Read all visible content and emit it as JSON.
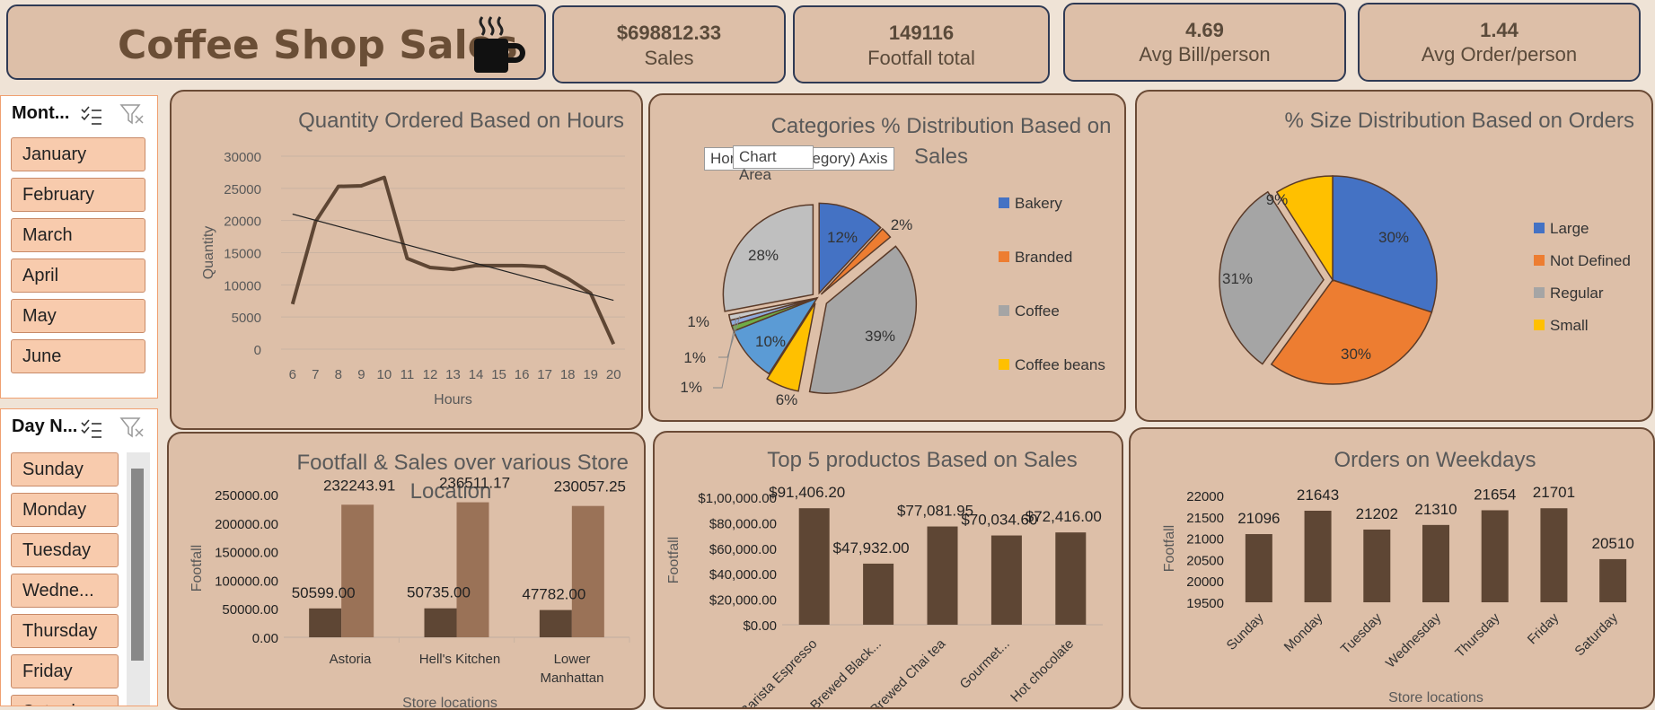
{
  "header": {
    "title": "Coffee Shop Sales"
  },
  "kpis": [
    {
      "value": "$698812.33",
      "label": "Sales"
    },
    {
      "value": "149116",
      "label": "Footfall total"
    },
    {
      "value": "4.69",
      "label": "Avg Bill/person"
    },
    {
      "value": "1.44",
      "label": "Avg Order/person"
    }
  ],
  "slicers": {
    "month": {
      "header": "Mont...",
      "items": [
        "January",
        "February",
        "March",
        "April",
        "May",
        "June"
      ]
    },
    "day": {
      "header": "Day N...",
      "items": [
        "Sunday",
        "Monday",
        "Tuesday",
        "Wedne...",
        "Thursday",
        "Friday",
        "Saturday"
      ]
    }
  },
  "tooltip": {
    "behind": "Horizontal (Category) Axis",
    "front": "Chart Area"
  },
  "colors": {
    "brown_dark": "#5e4634",
    "brown_light": "#9a7257",
    "blue": "#4472c4",
    "orange": "#ed7d31",
    "gray": "#a5a5a5",
    "gold": "#ffc000",
    "green": "#70ad47",
    "lightblue": "#5b9bd5"
  },
  "chart_data": [
    {
      "type": "line",
      "title": "Quantity Ordered Based on Hours",
      "xlabel": "Hours",
      "ylabel": "Quantity",
      "x": [
        6,
        7,
        8,
        9,
        10,
        11,
        12,
        13,
        14,
        15,
        16,
        17,
        18,
        19,
        20
      ],
      "series": [
        {
          "values": [
            7000,
            19800,
            25300,
            25400,
            26700,
            14100,
            12700,
            12400,
            13000,
            13000,
            13000,
            12800,
            11000,
            8700,
            800
          ]
        }
      ],
      "trendline": {
        "type": "linear",
        "from": [
          6,
          21000
        ],
        "to": [
          20,
          7600
        ]
      },
      "yticks": [
        "0",
        "5000",
        "10000",
        "15000",
        "20000",
        "25000",
        "30000"
      ],
      "ylim": [
        0,
        30000
      ],
      "grid": true
    },
    {
      "type": "pie",
      "title": "Categories % Distribution Based on Sales",
      "slices": [
        {
          "name": "Bakery",
          "value": 12,
          "label": "12%"
        },
        {
          "name": "Branded",
          "value": 2,
          "label": "2%"
        },
        {
          "name": "Coffee",
          "value": 39,
          "label": "39%"
        },
        {
          "name": "Coffee beans",
          "value": 6,
          "label": "6%"
        },
        {
          "value": 10,
          "label": "10%"
        },
        {
          "value": 1,
          "label": "1%"
        },
        {
          "value": 1,
          "label": "1%"
        },
        {
          "value": 1,
          "label": "1%"
        },
        {
          "value": 28,
          "label": "28%"
        }
      ],
      "legend": [
        "Bakery",
        "Branded",
        "Coffee",
        "Coffee beans"
      ],
      "legend_position": "right"
    },
    {
      "type": "pie",
      "title": "% Size Distribution Based on Orders",
      "slices": [
        {
          "name": "Large",
          "value": 30,
          "label": "30%"
        },
        {
          "name": "Not Defined",
          "value": 30,
          "label": "30%"
        },
        {
          "name": "Regular",
          "value": 31,
          "label": "31%"
        },
        {
          "name": "Small",
          "value": 9,
          "label": "9%"
        }
      ],
      "legend": [
        "Large",
        "Not Defined",
        "Regular",
        "Small"
      ],
      "legend_position": "right"
    },
    {
      "type": "bar",
      "title": "Footfall & Sales over various Store Location",
      "xlabel": "Store locations",
      "ylabel": "Footfall",
      "categories": [
        "Astoria",
        "Hell's Kitchen",
        "Lower Manhattan"
      ],
      "series": [
        {
          "values": [
            50599.0,
            50735.0,
            47782.0
          ],
          "labels": [
            "50599.00",
            "50735.00",
            "47782.00"
          ]
        },
        {
          "values": [
            232243.91,
            236511.17,
            230057.25
          ],
          "labels": [
            "232243.91",
            "236511.17",
            "230057.25"
          ]
        }
      ],
      "yticks": [
        "0.00",
        "50000.00",
        "100000.00",
        "150000.00",
        "200000.00",
        "250000.00"
      ],
      "ylim": [
        0,
        250000
      ]
    },
    {
      "type": "bar",
      "title": "Top 5 productos Based on Sales",
      "ylabel": "Footfall",
      "categories": [
        "Barista Espresso",
        "Brewed Black...",
        "Brewed Chai tea",
        "Gourmet...",
        "Hot chocolate"
      ],
      "values": [
        91406.2,
        47932.0,
        77081.95,
        70034.6,
        72416.0
      ],
      "labels": [
        "$91,406.20",
        "$47,932.00",
        "$77,081.95",
        "$70,034.60",
        "$72,416.00"
      ],
      "yticks": [
        "$0.00",
        "$20,000.00",
        "$40,000.00",
        "$60,000.00",
        "$80,000.00",
        "$1,00,000.00"
      ],
      "ylim": [
        0,
        100000
      ]
    },
    {
      "type": "bar",
      "title": "Orders on Weekdays",
      "xlabel": "Store locations",
      "ylabel": "Footfall",
      "categories": [
        "Sunday",
        "Monday",
        "Tuesday",
        "Wednesday",
        "Thursday",
        "Friday",
        "Saturday"
      ],
      "values": [
        21096,
        21643,
        21202,
        21310,
        21654,
        21701,
        20510
      ],
      "labels": [
        "21096",
        "21643",
        "21202",
        "21310",
        "21654",
        "21701",
        "20510"
      ],
      "yticks": [
        "19500",
        "20000",
        "20500",
        "21000",
        "21500",
        "22000"
      ],
      "ylim": [
        19500,
        22000
      ]
    }
  ]
}
